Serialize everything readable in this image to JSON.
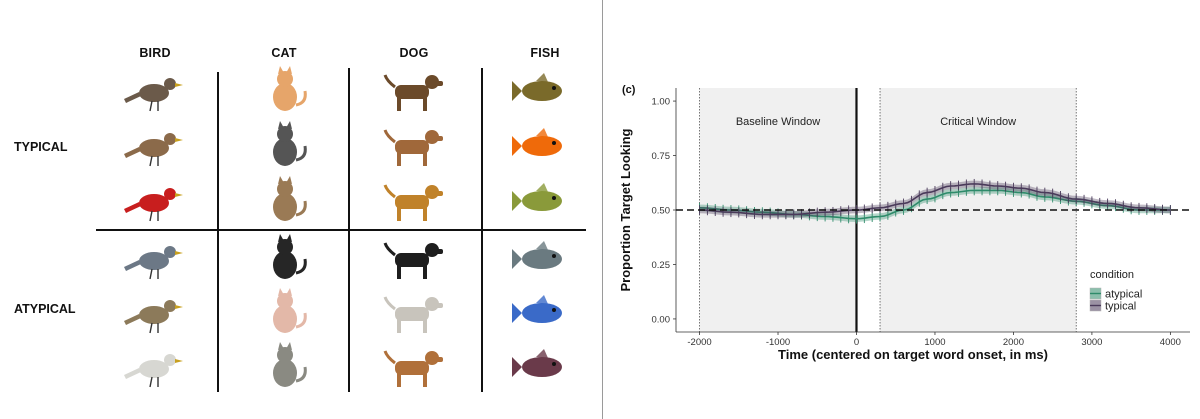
{
  "stimuli": {
    "columns": [
      "BIRD",
      "CAT",
      "DOG",
      "FISH"
    ],
    "rows": [
      "TYPICAL",
      "ATYPICAL"
    ],
    "animals": [
      [
        [
          "robin-bird",
          "sparrow-bird",
          "cardinal-bird"
        ],
        [
          "orange-cat",
          "gray-cat",
          "tabby-cat"
        ],
        [
          "shepherd-dog",
          "beagle-dog",
          "golden-dog"
        ],
        [
          "bass-fish",
          "clown-fish",
          "sunfish-fish"
        ]
      ],
      [
        [
          "kingfisher-bird",
          "kookaburra-bird",
          "egret-bird"
        ],
        [
          "black-cat",
          "sphynx-cat",
          "curled-cat"
        ],
        [
          "puli-dog",
          "afghan-dog",
          "basset-dog"
        ],
        [
          "sturgeon-fish",
          "betta-fish",
          "lion-fish"
        ]
      ]
    ],
    "colors": {
      "robin-bird": "#6b5a4a",
      "sparrow-bird": "#8b6a4a",
      "cardinal-bird": "#c81e1e",
      "kingfisher-bird": "#6c7886",
      "kookaburra-bird": "#8c7a5a",
      "egret-bird": "#d7d7d2",
      "orange-cat": "#e6a56a",
      "gray-cat": "#555555",
      "tabby-cat": "#9a7a55",
      "black-cat": "#262626",
      "sphynx-cat": "#e3b8a8",
      "curled-cat": "#8a8a82",
      "shepherd-dog": "#6b4a2a",
      "beagle-dog": "#a0683a",
      "golden-dog": "#c0822a",
      "puli-dog": "#1e1e1e",
      "afghan-dog": "#c8c4bc",
      "basset-dog": "#b0703a",
      "bass-fish": "#7a6a2a",
      "clown-fish": "#ef6a0a",
      "sunfish-fish": "#8a9a3a",
      "sturgeon-fish": "#6a7a80",
      "betta-fish": "#3a6ac8",
      "lion-fish": "#6a3a4a"
    }
  },
  "chart_data": {
    "type": "line",
    "panel_label": "(c)",
    "xlabel": "Time (centered on target word onset, in ms)",
    "ylabel": "Proportion Target Looking",
    "xlim": [
      -2300,
      4250
    ],
    "ylim": [
      -0.06,
      1.06
    ],
    "xticks": [
      -2000,
      -1000,
      0,
      1000,
      2000,
      3000,
      4000
    ],
    "xtick_labels": [
      "-2000",
      "-1000",
      "0",
      "1000",
      "2000",
      "3000",
      "4000"
    ],
    "yticks": [
      0,
      0.25,
      0.5,
      0.75,
      1
    ],
    "ytick_labels": [
      "0.00",
      "0.25",
      "0.50",
      "0.75",
      "1.00"
    ],
    "chance_level": 0.5,
    "onset_line": 0,
    "windows": [
      {
        "label": "Baseline Window",
        "start": -2000,
        "end": 0
      },
      {
        "label": "Critical Window",
        "start": 300,
        "end": 2800
      }
    ],
    "legend_title": "condition",
    "legend_position": "bottom-right",
    "series": [
      {
        "name": "atypical",
        "color": "#2e8b6a",
        "x": [
          -2000,
          -1600,
          -1200,
          -800,
          -400,
          0,
          300,
          600,
          900,
          1200,
          1500,
          1800,
          2100,
          2400,
          2800,
          3200,
          3600,
          4000
        ],
        "y": [
          0.51,
          0.5,
          0.49,
          0.48,
          0.47,
          0.46,
          0.47,
          0.5,
          0.55,
          0.58,
          0.59,
          0.59,
          0.58,
          0.56,
          0.54,
          0.52,
          0.5,
          0.5
        ],
        "err": 0.015
      },
      {
        "name": "typical",
        "color": "#4a3a5a",
        "x": [
          -2000,
          -1600,
          -1200,
          -800,
          -400,
          0,
          300,
          600,
          900,
          1200,
          1500,
          1800,
          2100,
          2400,
          2800,
          3200,
          3600,
          4000
        ],
        "y": [
          0.5,
          0.49,
          0.48,
          0.48,
          0.49,
          0.5,
          0.51,
          0.53,
          0.58,
          0.61,
          0.62,
          0.61,
          0.6,
          0.58,
          0.55,
          0.53,
          0.51,
          0.5
        ],
        "err": 0.015
      }
    ]
  }
}
